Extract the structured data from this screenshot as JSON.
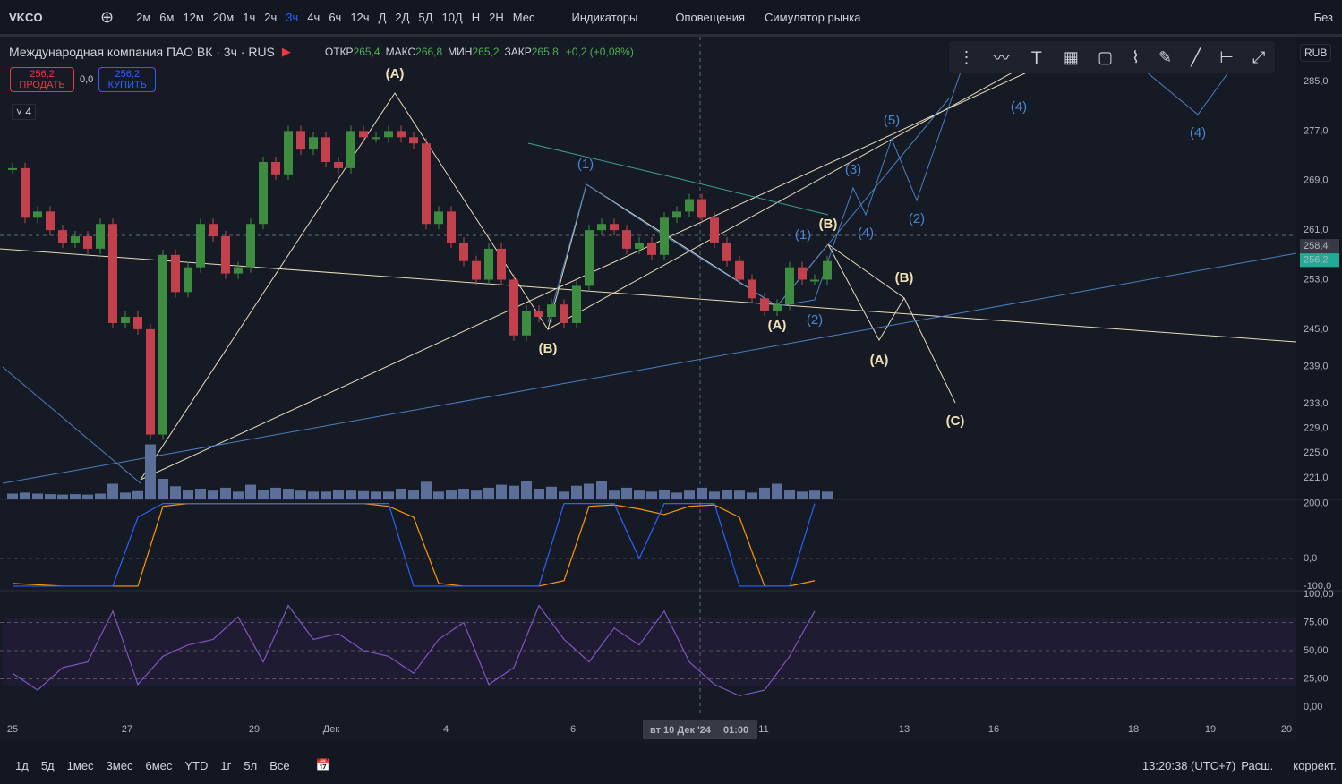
{
  "toolbar": {
    "symbol": "VKCO",
    "intervals": [
      "2м",
      "6м",
      "12м",
      "20м",
      "1ч",
      "2ч",
      "3ч",
      "4ч",
      "6ч",
      "12ч",
      "Д",
      "2Д",
      "5Д",
      "10Д",
      "Н",
      "2Н",
      "Мес"
    ],
    "indicators": "Индикаторы",
    "alerts": "Оповещения",
    "replay": "Симулятор рынка",
    "right": "Без"
  },
  "legend": {
    "title": "Международная компания ПАО ВК · 3ч · RUS",
    "ohlc": [
      {
        "label": "ОТКР",
        "value": "265,4"
      },
      {
        "label": "МАКС",
        "value": "266,8"
      },
      {
        "label": "МИН",
        "value": "265,2"
      },
      {
        "label": "ЗАКР",
        "value": "265,8"
      }
    ],
    "change": "+0,2 (+0,08%)",
    "sell_price": "256,2",
    "sell": "ПРОДАТЬ",
    "spread": "0,0",
    "buy_price": "256,2",
    "buy": "КУПИТЬ",
    "collapsed": "4"
  },
  "price_axis": {
    "currency": "RUB",
    "ylim": [
      219,
      289
    ],
    "ticks": [
      {
        "value": 285,
        "label": "285,0"
      },
      {
        "value": 277,
        "label": "277,0"
      },
      {
        "value": 269,
        "label": "269,0"
      },
      {
        "value": 261,
        "label": "261,0"
      },
      {
        "value": 253,
        "label": "253,0"
      },
      {
        "value": 245,
        "label": "245,0"
      },
      {
        "value": 239,
        "label": "239,0"
      },
      {
        "value": 233,
        "label": "233,0"
      },
      {
        "value": 229,
        "label": "229,0"
      },
      {
        "value": 225,
        "label": "225,0"
      },
      {
        "value": 221,
        "label": "221,0"
      }
    ],
    "crosshair": {
      "value": 258.4,
      "label": "258,4"
    },
    "last": {
      "value": 256.2,
      "label": "256,2"
    }
  },
  "osc1": {
    "ylim": [
      -110,
      215
    ],
    "ticks": [
      {
        "value": 200,
        "label": "200,0"
      },
      {
        "value": 0,
        "label": "0,0"
      },
      {
        "value": -100,
        "label": "-100,0"
      }
    ],
    "fast": [
      -100,
      -100,
      -100,
      -100,
      -100,
      150,
      200,
      200,
      200,
      200,
      200,
      200,
      200,
      200,
      200,
      200,
      -100,
      -100,
      -100,
      -100,
      -100,
      -100,
      200,
      200,
      200,
      0,
      200,
      200,
      200,
      -100,
      -100,
      -100,
      200
    ],
    "slow": [
      -90,
      -95,
      -100,
      -100,
      -100,
      -100,
      190,
      200,
      200,
      200,
      200,
      200,
      200,
      200,
      200,
      190,
      150,
      -90,
      -100,
      -100,
      -100,
      -100,
      -80,
      190,
      195,
      180,
      160,
      190,
      195,
      150,
      -100,
      -100,
      -80
    ]
  },
  "osc2": {
    "ylim": [
      0,
      100
    ],
    "ticks": [
      {
        "value": 100,
        "label": "100,00"
      },
      {
        "value": 75,
        "label": "75,00"
      },
      {
        "value": 50,
        "label": "50,00"
      },
      {
        "value": 25,
        "label": "25,00"
      },
      {
        "value": 0,
        "label": "0,00"
      }
    ],
    "rsi": [
      30,
      15,
      35,
      40,
      85,
      20,
      45,
      55,
      60,
      80,
      40,
      90,
      60,
      65,
      50,
      45,
      30,
      60,
      75,
      20,
      35,
      90,
      60,
      40,
      70,
      55,
      85,
      40,
      20,
      10,
      15,
      45,
      85
    ]
  },
  "candles": {
    "close": [
      271,
      263,
      264,
      261,
      259,
      260,
      258,
      262,
      246,
      247,
      245,
      228,
      257,
      251,
      255,
      262,
      260,
      254,
      255,
      262,
      272,
      270,
      277,
      274,
      276,
      272,
      271,
      277,
      276,
      276,
      277,
      276,
      275,
      262,
      264,
      259,
      256,
      253,
      258,
      253,
      244,
      248,
      247,
      249,
      246,
      252,
      261,
      262,
      261,
      258,
      259,
      257,
      263,
      264,
      266,
      263,
      259,
      256,
      253,
      250,
      248,
      249,
      255,
      253,
      253,
      256
    ]
  },
  "volume": [
    10,
    12,
    10,
    9,
    8,
    9,
    8,
    10,
    30,
    12,
    15,
    110,
    40,
    25,
    18,
    20,
    16,
    22,
    14,
    28,
    18,
    22,
    20,
    16,
    14,
    14,
    18,
    16,
    15,
    14,
    14,
    20,
    18,
    34,
    14,
    18,
    20,
    16,
    22,
    28,
    26,
    36,
    20,
    24,
    14,
    26,
    30,
    35,
    16,
    22,
    16,
    14,
    18,
    12,
    16,
    22,
    14,
    18,
    16,
    12,
    22,
    30,
    18,
    14,
    16,
    14
  ],
  "time_axis": [
    "25",
    "27",
    "29",
    "Дек",
    "4",
    "6",
    "11",
    "13",
    "16",
    "18",
    "19",
    "20"
  ],
  "crosshair_date": "вт 10 Дек '24",
  "crosshair_time": "01:00",
  "annotations": [
    "(A)",
    "(1)",
    "(B)",
    "(A)",
    "(B)",
    "(1)",
    "(2)",
    "(3)",
    "(4)",
    "(5)",
    "(2)",
    "(4)",
    "(4)",
    "(B)",
    "(A)",
    "(C)"
  ],
  "ranges": [
    "1д",
    "5д",
    "1мес",
    "3мес",
    "6мес",
    "YTD",
    "1г",
    "5л",
    "Все"
  ],
  "clock": "13:20:38 (UTC+7)",
  "scale": "Расш.",
  "adj": "коррект."
}
